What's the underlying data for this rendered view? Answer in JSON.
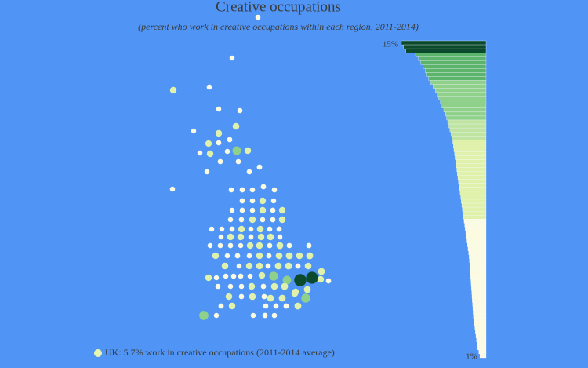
{
  "chart_data": {
    "type": "dotmap",
    "title": "Creative occupations",
    "subtitle": "(percent who work in creative occupations within each region, 2011-2014)",
    "legend": "UK: 5.7% work in creative occupations (2011-2014 average)",
    "dot_values": [
      2.5,
      2.4,
      5,
      2.6,
      2.3,
      2.5,
      5,
      5.2,
      2.2,
      4.8,
      2.5,
      2.7,
      2.3,
      5,
      8.5,
      5.1,
      2.4,
      2.6,
      2.5,
      2.3,
      2.6,
      2.8,
      2.4,
      2.5,
      2.6,
      2.4,
      2.7,
      2.5,
      2.6,
      2.5,
      5,
      2.4,
      2.3,
      2.6,
      2.5,
      5.2,
      2.8,
      5,
      2.4,
      2.6,
      5,
      2.5,
      2.7,
      5.1,
      2.5,
      2.3,
      2.6,
      5,
      2.5,
      5.2,
      2.6,
      2.7,
      2.4,
      5,
      5.1,
      2.6,
      5,
      5.3,
      2.5,
      2.3,
      2.5,
      2.6,
      2.4,
      5,
      5.2,
      2.6,
      5.4,
      2.7,
      2.8,
      5,
      2.4,
      2.6,
      2.5,
      5.1,
      2.7,
      5.3,
      5.5,
      5.2,
      5.6,
      5,
      2.5,
      5,
      5.2,
      2.6,
      5.4,
      5.6,
      2.8,
      5.3,
      5.5,
      5.1,
      2.3,
      2.4,
      2.5,
      2.6,
      2.4,
      5.2,
      9,
      8.5,
      15,
      14.5,
      5,
      2.6,
      2.5,
      2.4,
      2.5,
      5.1,
      2.6,
      5.3,
      5.6,
      5.2,
      5.4,
      5.1,
      2.6,
      5.2,
      2.7,
      5.4,
      5.5,
      5.6,
      9.2,
      2.8,
      5,
      2.5,
      2.6,
      2.7,
      5.3,
      9.5,
      2.3,
      2.4,
      2.6,
      2.5,
      2.7
    ],
    "bar_values": [
      15,
      14.6,
      14.2,
      12.5,
      12,
      11.6,
      11.2,
      10.8,
      10.5,
      10.2,
      9.8,
      9.4,
      9,
      8.7,
      8.4,
      8.1,
      7.8,
      7.5,
      7.2,
      7,
      6.8,
      6.6,
      6.4,
      6.2,
      6,
      5.9,
      5.8,
      5.7,
      5.6,
      5.5,
      5.4,
      5.3,
      5.2,
      5.1,
      5,
      4.9,
      4.8,
      4.7,
      4.6,
      4.5,
      4.4,
      4.3,
      4.2,
      4.1,
      4,
      3.9,
      3.8,
      3.7,
      3.6,
      3.5,
      3.4,
      3.3,
      3.2,
      3.1,
      3,
      2.95,
      2.9,
      2.85,
      2.8,
      2.75,
      2.7,
      2.65,
      2.6,
      2.55,
      2.5,
      2.45,
      2.4,
      2.35,
      2.3,
      2.25,
      2.2,
      2.1,
      2,
      1.9,
      1.8,
      1.7,
      1.6,
      1.5,
      1.3,
      1.1
    ],
    "xlim": [
      0,
      15
    ],
    "xticks": [
      {
        "value": 15,
        "label": "15%"
      },
      {
        "value": 1,
        "label": "1%"
      }
    ],
    "legend_color": "#e6f5b0"
  }
}
